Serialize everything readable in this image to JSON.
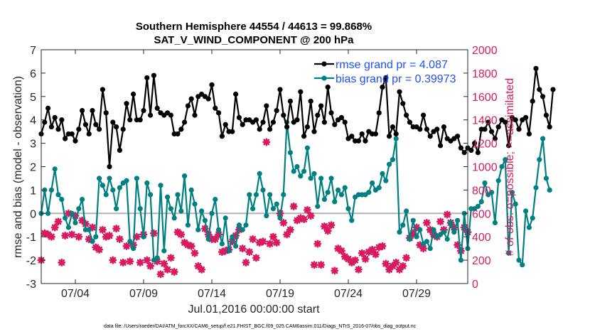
{
  "chart_data": {
    "type": "line",
    "title": [
      "Southern Hemisphere 44554 / 44613 = 99.868%",
      "SAT_V_WIND_COMPONENT @ 200 hPa"
    ],
    "xlabel": "Jul.01,2016 00:00:00 start",
    "ylabel": "rmse and bias (model - observation)",
    "ylabel_right": "# of obs: o=possible; ×=assimilated",
    "footnote": "data file: /Users/raeder/DAI/ATM_forcXX/CAM6_setup/f.e21.FHIST_BGC.f09_025.CAM6assim.011/Diags_NTrS_2016-07/obs_diag_output.nc",
    "x_ticks": [
      {
        "x": 3.5,
        "label": "07/04"
      },
      {
        "x": 8.5,
        "label": "07/09"
      },
      {
        "x": 13.5,
        "label": "07/14"
      },
      {
        "x": 18.5,
        "label": "07/19"
      },
      {
        "x": 23.5,
        "label": "07/24"
      },
      {
        "x": 28.5,
        "label": "07/29"
      }
    ],
    "xlim": [
      1.0,
      32.25
    ],
    "ylim": [
      -3,
      7
    ],
    "y_ticks": [
      -3,
      -2,
      -1,
      0,
      1,
      2,
      3,
      4,
      5,
      6,
      7
    ],
    "y2lim": [
      0,
      2000
    ],
    "y2_ticks": [
      0,
      200,
      400,
      600,
      800,
      1000,
      1200,
      1400,
      1600,
      1800,
      2000
    ],
    "zero_line": 0,
    "grid": false,
    "legend_position": "top-right",
    "colors": {
      "rmse": "#000000",
      "bias": "#008080",
      "obs": "#d81b60",
      "zero": "#b3b3b3"
    },
    "series": [
      {
        "name": "rmse grand pr = 4.087",
        "x_start": 1.0,
        "x_step": 0.25,
        "values": [
          3.4,
          3.9,
          4.5,
          3.7,
          4.1,
          3.6,
          4.0,
          3.2,
          3.4,
          3.4,
          3.1,
          3.6,
          4.4,
          3.8,
          3.4,
          4.4,
          3.8,
          3.6,
          5.3,
          4.3,
          2.0,
          3.9,
          3.7,
          2.7,
          3.6,
          4.7,
          4.0,
          5.1,
          4.0,
          4.0,
          4.4,
          5.8,
          4.2,
          5.9,
          4.5,
          4.3,
          4.2,
          4.3,
          4.2,
          3.4,
          3.4,
          3.6,
          3.9,
          4.6,
          4.9,
          4.2,
          5.0,
          5.1,
          5.0,
          4.9,
          5.5,
          4.5,
          4.3,
          3.3,
          3.8,
          3.5,
          3.5,
          5.1,
          4.1,
          3.8,
          4.0,
          4.0,
          3.9,
          4.0,
          3.6,
          3.9,
          4.6,
          3.6,
          3.9,
          4.4,
          5.3,
          4.2,
          3.7,
          4.8,
          3.9,
          4.0,
          5.2,
          3.3,
          3.7,
          4.8,
          3.5,
          4.2,
          4.6,
          3.9,
          5.4,
          4.3,
          3.8,
          4.0,
          4.1,
          3.9,
          3.2,
          3.3,
          3.1,
          3.1,
          3.4,
          3.1,
          3.5,
          3.4,
          3.4,
          4.3,
          5.4,
          5.8,
          3.3,
          3.7,
          3.4,
          5.2,
          4.7,
          4.2,
          3.9,
          3.7,
          3.7,
          3.6,
          4.2,
          3.6,
          3.3,
          3.5,
          3.6,
          2.9,
          3.7,
          3.2,
          3.1,
          3.2,
          3.3,
          2.8,
          2.6,
          2.8,
          2.7,
          3.0,
          2.6,
          3.6,
          3.6,
          3.9,
          3.5,
          3.2,
          3.7,
          4.0,
          3.9,
          2.9,
          4.1,
          4.0,
          3.6,
          4.0,
          4.1,
          3.4,
          4.8,
          6.2,
          5.3,
          5.0,
          4.2,
          3.7,
          5.3
        ]
      },
      {
        "name": "bias grand pr = 0.39973",
        "x_start": 1.0,
        "x_step": 0.25,
        "values": [
          0.0,
          1.0,
          0.0,
          1.0,
          1.9,
          0.8,
          0.6,
          -0.2,
          -0.6,
          0.0,
          -0.4,
          0.2,
          0.6,
          -0.7,
          -0.7,
          -1.2,
          -1.0,
          1.5,
          1.2,
          0.8,
          1.5,
          1.0,
          0.2,
          1.1,
          1.3,
          1.4,
          -1.2,
          -1.5,
          1.5,
          0.2,
          -1.0,
          1.3,
          0.8,
          -2.0,
          -1.9,
          1.2,
          -1.6,
          0.7,
          0.2,
          -0.2,
          0.8,
          0.1,
          1.6,
          -0.5,
          1.0,
          0.4,
          -0.7,
          0.1,
          -0.3,
          -1.1,
          0.0,
          0.6,
          -0.7,
          -1.3,
          -0.2,
          -1.6,
          -1.0,
          -1.4,
          -0.5,
          -0.7,
          -0.5,
          0.8,
          0.2,
          0.8,
          1.7,
          1.0,
          -0.1,
          0.8,
          0.2,
          0.4,
          -0.2,
          0.8,
          3.9,
          2.6,
          1.8,
          2.0,
          1.6,
          1.8,
          2.8,
          1.5,
          1.7,
          0.3,
          1.5,
          0.6,
          0.9,
          1.5,
          0.5,
          1.0,
          0.8,
          1.1,
          0.2,
          -0.3,
          0.7,
          0.8,
          0.8,
          0.8,
          0.9,
          1.3,
          1.0,
          1.1,
          1.7,
          1.4,
          2.1,
          2.3,
          3.2,
          -0.8,
          -0.5,
          0.1,
          -1.1,
          -0.3,
          -1.0,
          -0.7,
          -1.3,
          -1.2,
          -1.5,
          -0.7,
          -1.0,
          -0.9,
          -0.8,
          -1.1,
          -0.4,
          -0.8,
          -0.3,
          -2.0,
          0.0,
          -1.5,
          0.2,
          0.2,
          0.3,
          0.5,
          1.3,
          0.8,
          0.9,
          -0.4,
          1.4,
          2.0,
          2.3,
          -1.7,
          0.9,
          0.4,
          -2.0,
          -2.2,
          0.1,
          -0.6,
          -0.2,
          1.1,
          2.3,
          3.2,
          1.5,
          1.0
        ]
      },
      {
        "name": "obs",
        "x_start": 1.0,
        "x_step": 0.25,
        "values": [
          200,
          430,
          420,
          400,
          480,
          530,
          180,
          410,
          600,
          420,
          580,
          400,
          540,
          510,
          380,
          480,
          310,
          290,
          460,
          400,
          410,
          200,
          470,
          380,
          180,
          320,
          190,
          330,
          400,
          180,
          420,
          200,
          150,
          430,
          190,
          80,
          170,
          120,
          220,
          100,
          440,
          420,
          350,
          330,
          320,
          260,
          150,
          120,
          470,
          420,
          380,
          380,
          420,
          270,
          280,
          290,
          360,
          410,
          460,
          300,
          180,
          270,
          380,
          220,
          350,
          360,
          1210,
          340,
          400,
          350,
          600,
          520,
          420,
          460,
          660,
          540,
          560,
          550,
          630,
          580,
          160,
          340,
          160,
          490,
          450,
          500,
          110,
          300,
          280,
          230,
          210,
          180,
          200,
          120,
          260,
          210,
          270,
          290,
          250,
          310,
          320,
          170,
          120,
          150,
          180,
          120,
          150,
          220,
          390,
          430,
          480,
          330,
          300,
          520,
          460,
          420,
          400,
          530,
          460,
          590,
          520,
          480,
          330,
          280,
          480,
          440,
          470,
          380,
          100,
          90,
          170,
          280,
          300,
          130,
          50,
          100,
          150,
          300,
          500,
          620,
          460,
          450,
          370,
          390,
          260,
          160
        ]
      }
    ]
  }
}
